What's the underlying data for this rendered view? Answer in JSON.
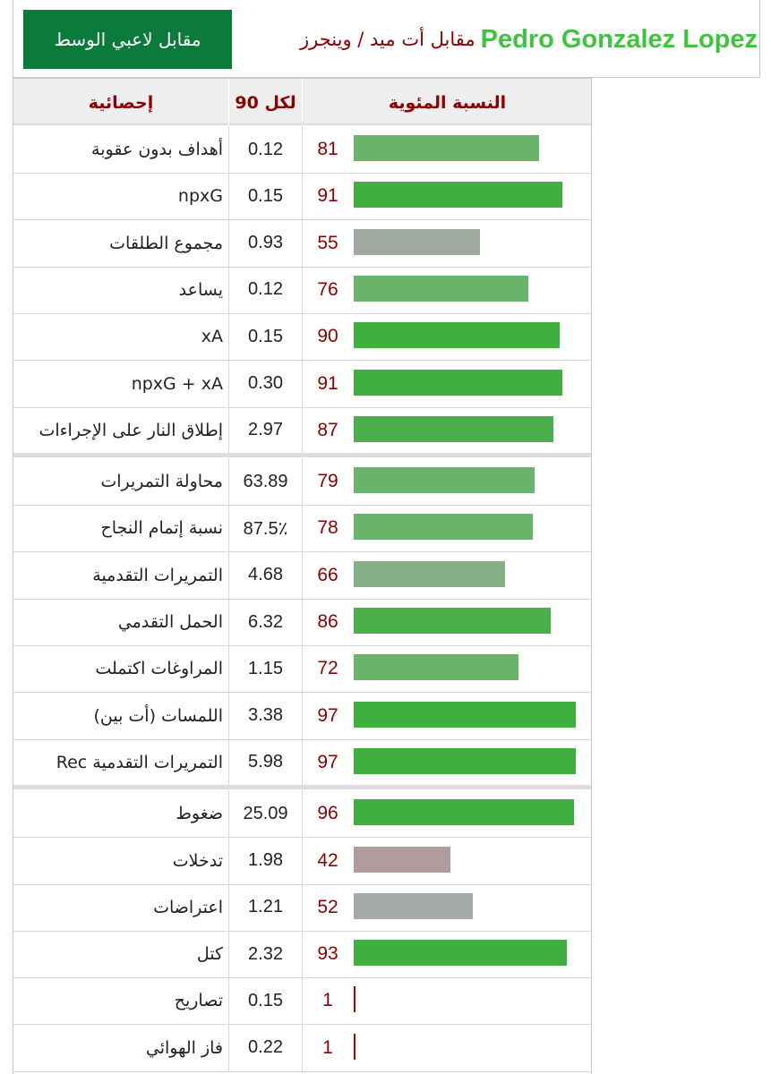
{
  "header": {
    "player_name": "Pedro Gonzalez Lopez",
    "subtitle": "مقابل أت ميد / وينجرز",
    "compare_button": "مقابل لاعبي الوسط"
  },
  "table": {
    "columns": {
      "stat": "إحصائية",
      "per90": "لكل 90",
      "percentile": "النسبة المئوية"
    },
    "rows": [
      {
        "stat": "أهداف بدون عقوبة",
        "per90": "0.12",
        "percentile": "81",
        "pct_value": 81,
        "color": "#6ab36a"
      },
      {
        "stat": "npxG",
        "per90": "0.15",
        "percentile": "91",
        "pct_value": 91,
        "color": "#3faf3f"
      },
      {
        "stat": "مجموع الطلقات",
        "per90": "0.93",
        "percentile": "55",
        "pct_value": 55,
        "color": "#a0aaa0"
      },
      {
        "stat": "يساعد",
        "per90": "0.12",
        "percentile": "76",
        "pct_value": 76,
        "color": "#6ab36a"
      },
      {
        "stat": "xA",
        "per90": "0.15",
        "percentile": "90",
        "pct_value": 90,
        "color": "#3faf3f"
      },
      {
        "stat": "npxG + xA",
        "per90": "0.30",
        "percentile": "91",
        "pct_value": 91,
        "color": "#3faf3f"
      },
      {
        "stat": "إطلاق النار على الإجراءات",
        "per90": "2.97",
        "percentile": "87",
        "pct_value": 87,
        "color": "#4aae4a"
      },
      {
        "stat": "محاولة التمريرات",
        "per90": "63.89",
        "percentile": "79",
        "pct_value": 79,
        "color": "#6ab36a"
      },
      {
        "stat": "نسبة إتمام النجاح",
        "per90": "87.5٪",
        "percentile": "78",
        "pct_value": 78,
        "color": "#6ab36a"
      },
      {
        "stat": "التمريرات التقدمية",
        "per90": "4.68",
        "percentile": "66",
        "pct_value": 66,
        "color": "#86b086"
      },
      {
        "stat": "الحمل التقدمي",
        "per90": "6.32",
        "percentile": "86",
        "pct_value": 86,
        "color": "#4aae4a"
      },
      {
        "stat": "المراوغات اكتملت",
        "per90": "1.15",
        "percentile": "72",
        "pct_value": 72,
        "color": "#6ab36a"
      },
      {
        "stat": "اللمسات (أت بين)",
        "per90": "3.38",
        "percentile": "97",
        "pct_value": 97,
        "color": "#3faf3f"
      },
      {
        "stat": "Rec التمريرات التقدمية",
        "per90": "5.98",
        "percentile": "97",
        "pct_value": 97,
        "color": "#3faf3f"
      },
      {
        "stat": "ضغوط",
        "per90": "25.09",
        "percentile": "96",
        "pct_value": 96,
        "color": "#3faf3f"
      },
      {
        "stat": "تدخلات",
        "per90": "1.98",
        "percentile": "42",
        "pct_value": 42,
        "color": "#b09c9c"
      },
      {
        "stat": "اعتراضات",
        "per90": "1.21",
        "percentile": "52",
        "pct_value": 52,
        "color": "#a6aaa6"
      },
      {
        "stat": "كتل",
        "per90": "2.32",
        "percentile": "93",
        "pct_value": 93,
        "color": "#3faf3f"
      },
      {
        "stat": "تصاريح",
        "per90": "0.15",
        "percentile": "1",
        "pct_value": 1,
        "color": "#b00000"
      },
      {
        "stat": "فاز الهوائي",
        "per90": "0.22",
        "percentile": "1",
        "pct_value": 1,
        "color": "#b00000"
      }
    ]
  }
}
